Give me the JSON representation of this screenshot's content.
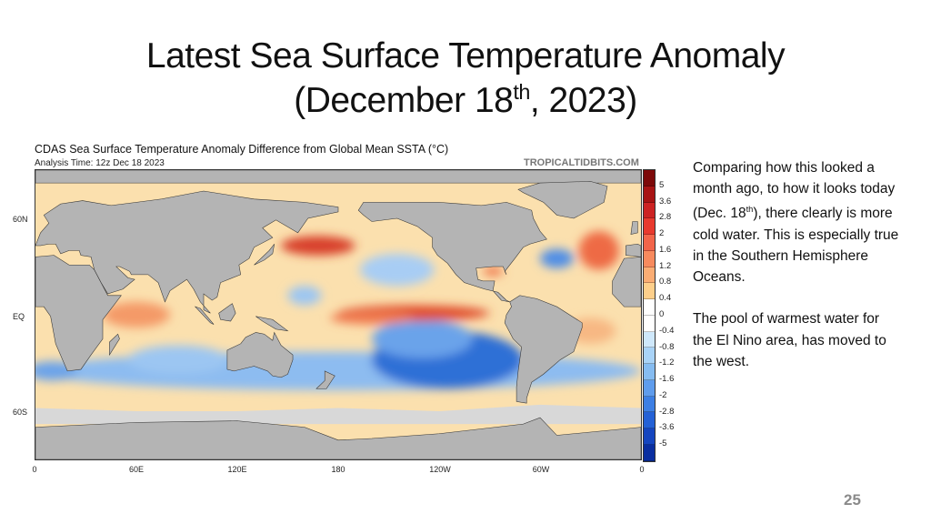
{
  "slide": {
    "title_line1": "Latest Sea Surface Temperature Anomaly",
    "title_line2_pre": "(December 18",
    "title_line2_sup": "th",
    "title_line2_post": ", 2023)",
    "page_number": "25"
  },
  "map": {
    "title": "CDAS Sea Surface Temperature Anomaly Difference from Global Mean SSTA (°C)",
    "analysis_time": "Analysis Time: 12z Dec 18 2023",
    "credit": "TROPICALTIDBITS.COM",
    "lat_labels": [
      "60N",
      "EQ",
      "60S"
    ],
    "lon_labels": [
      "0",
      "60E",
      "120E",
      "180",
      "120W",
      "60W",
      "0"
    ],
    "colorbar_labels": [
      "5",
      "3.6",
      "2.8",
      "2",
      "1.6",
      "1.2",
      "0.8",
      "0.4",
      "0",
      "-0.4",
      "-0.8",
      "-1.2",
      "-1.6",
      "-2",
      "-2.8",
      "-3.6",
      "-5"
    ],
    "colorbar_colors": [
      "#7d0a0a",
      "#a81414",
      "#cc2323",
      "#e83a2e",
      "#f2654a",
      "#f78a5e",
      "#fbad74",
      "#fdcf8b",
      "#ffffff",
      "#ffffff",
      "#cfe8fb",
      "#a9d3f7",
      "#86bcf1",
      "#5f9cec",
      "#3d7fe4",
      "#2461d6",
      "#1545bf",
      "#0a2ea0"
    ],
    "land_color": "#b4b4b4"
  },
  "notes": {
    "p1_pre": "Comparing how this looked a month ago, to how it looks today (Dec. 18",
    "p1_sup": "th",
    "p1_post": "), there clearly is more cold water.  This is especially true in the Southern Hemisphere Oceans.",
    "p2": "The pool of warmest water for the El Nino area, has moved to the west."
  }
}
